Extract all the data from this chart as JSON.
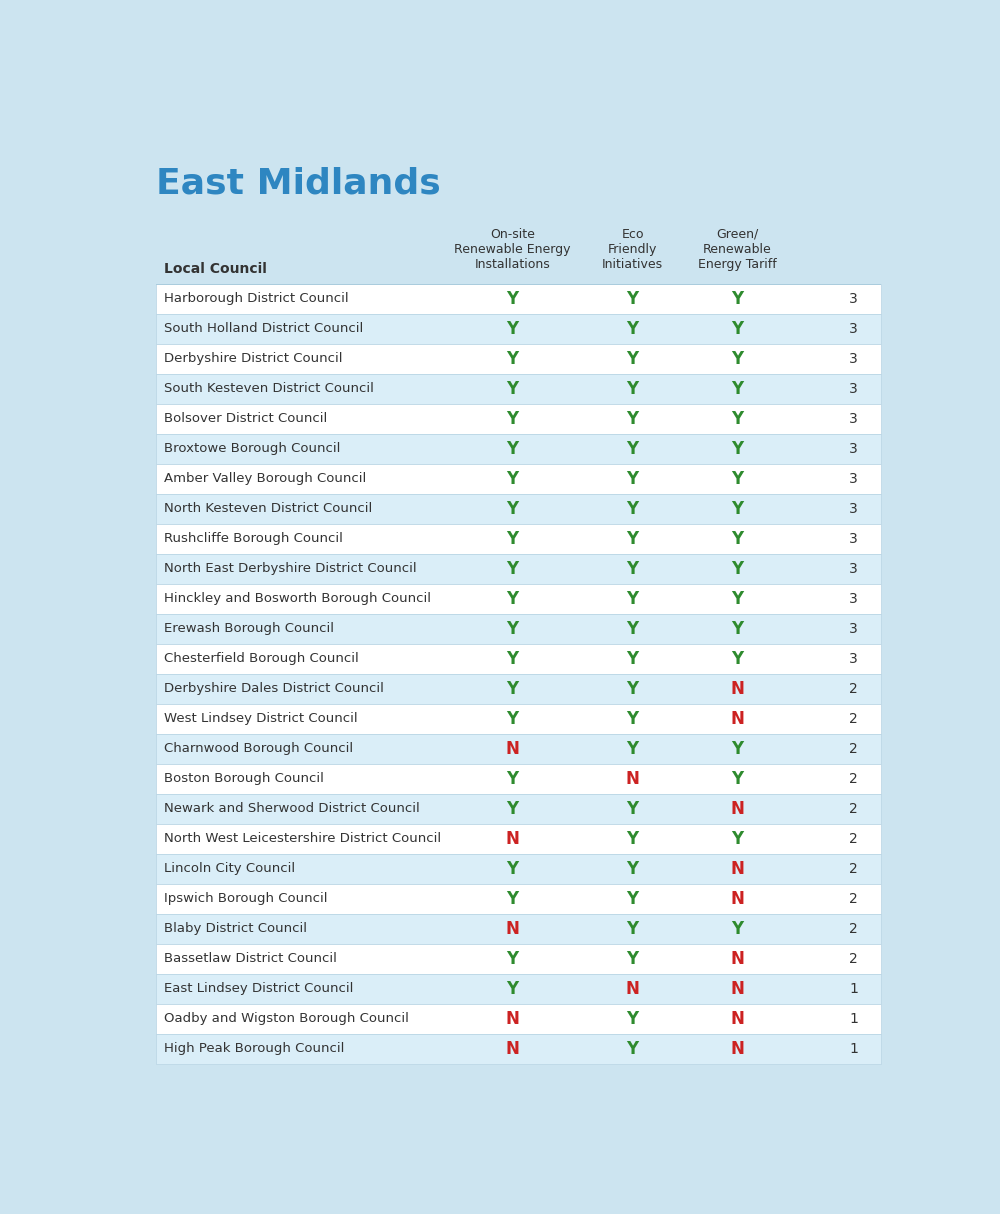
{
  "title": "East Midlands",
  "title_color": "#2E86C1",
  "background_color": "#cce4f0",
  "table_bg_even": "#ffffff",
  "table_bg_odd": "#daeef8",
  "header_col1": "Local Council",
  "header_col2": "On-site\nRenewable Energy\nInstallations",
  "header_col3": "Eco\nFriendly\nInitiatives",
  "header_col4": "Green/\nRenewable\nEnergy Tariff",
  "header_color": "#333333",
  "yes_color": "#2e8b2e",
  "no_color": "#cc2222",
  "score_color": "#333333",
  "council_color": "#333333",
  "rows": [
    [
      "Harborough District Council",
      "Y",
      "Y",
      "Y",
      3
    ],
    [
      "South Holland District Council",
      "Y",
      "Y",
      "Y",
      3
    ],
    [
      "Derbyshire District Council",
      "Y",
      "Y",
      "Y",
      3
    ],
    [
      "South Kesteven District Council",
      "Y",
      "Y",
      "Y",
      3
    ],
    [
      "Bolsover District Council",
      "Y",
      "Y",
      "Y",
      3
    ],
    [
      "Broxtowe Borough Council",
      "Y",
      "Y",
      "Y",
      3
    ],
    [
      "Amber Valley Borough Council",
      "Y",
      "Y",
      "Y",
      3
    ],
    [
      "North Kesteven District Council",
      "Y",
      "Y",
      "Y",
      3
    ],
    [
      "Rushcliffe Borough Council",
      "Y",
      "Y",
      "Y",
      3
    ],
    [
      "North East Derbyshire District Council",
      "Y",
      "Y",
      "Y",
      3
    ],
    [
      "Hinckley and Bosworth Borough Council",
      "Y",
      "Y",
      "Y",
      3
    ],
    [
      "Erewash Borough Council",
      "Y",
      "Y",
      "Y",
      3
    ],
    [
      "Chesterfield Borough Council",
      "Y",
      "Y",
      "Y",
      3
    ],
    [
      "Derbyshire Dales District Council",
      "Y",
      "Y",
      "N",
      2
    ],
    [
      "West Lindsey District Council",
      "Y",
      "Y",
      "N",
      2
    ],
    [
      "Charnwood Borough Council",
      "N",
      "Y",
      "Y",
      2
    ],
    [
      "Boston Borough Council",
      "Y",
      "N",
      "Y",
      2
    ],
    [
      "Newark and Sherwood District Council",
      "Y",
      "Y",
      "N",
      2
    ],
    [
      "North West Leicestershire District Council",
      "N",
      "Y",
      "Y",
      2
    ],
    [
      "Lincoln City Council",
      "Y",
      "Y",
      "N",
      2
    ],
    [
      "Ipswich Borough Council",
      "Y",
      "Y",
      "N",
      2
    ],
    [
      "Blaby District Council",
      "N",
      "Y",
      "Y",
      2
    ],
    [
      "Bassetlaw District Council",
      "Y",
      "Y",
      "N",
      2
    ],
    [
      "East Lindsey District Council",
      "Y",
      "N",
      "N",
      1
    ],
    [
      "Oadby and Wigston Borough Council",
      "N",
      "Y",
      "N",
      1
    ],
    [
      "High Peak Borough Council",
      "N",
      "Y",
      "N",
      1
    ]
  ]
}
